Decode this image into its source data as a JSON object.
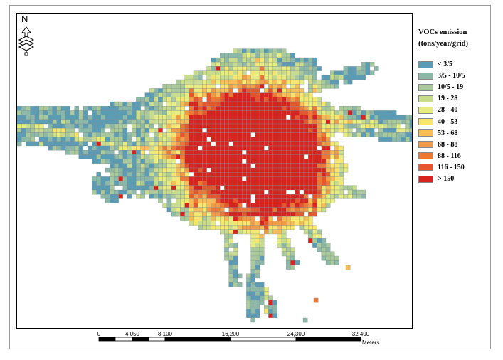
{
  "map": {
    "north_label": "N",
    "legend": {
      "title_line1": "VOCs emission",
      "title_line2": "(tons/year/grid)",
      "classes": [
        {
          "label": "<  3/5",
          "color": "#5a9bb5"
        },
        {
          "label": "3/5 - 10/5",
          "color": "#8cb8a8"
        },
        {
          "label": "10/5 - 19",
          "color": "#a9c99b"
        },
        {
          "label": "19 - 28",
          "color": "#c9dc8c"
        },
        {
          "label": "28 - 40",
          "color": "#e7ec7e"
        },
        {
          "label": "40 - 53",
          "color": "#f8e56b"
        },
        {
          "label": "53 - 68",
          "color": "#f7bc55"
        },
        {
          "label": "68 - 88",
          "color": "#f39a45"
        },
        {
          "label": "88 - 116",
          "color": "#ee7734"
        },
        {
          "label": "116 - 150",
          "color": "#e7562a"
        },
        {
          "label": "> 150",
          "color": "#d8231e"
        }
      ]
    },
    "scale_bar": {
      "ticks": [
        "0",
        "4,050",
        "8,100",
        "16,200",
        "24,300",
        "32,400"
      ],
      "unit": "Meters"
    }
  }
}
